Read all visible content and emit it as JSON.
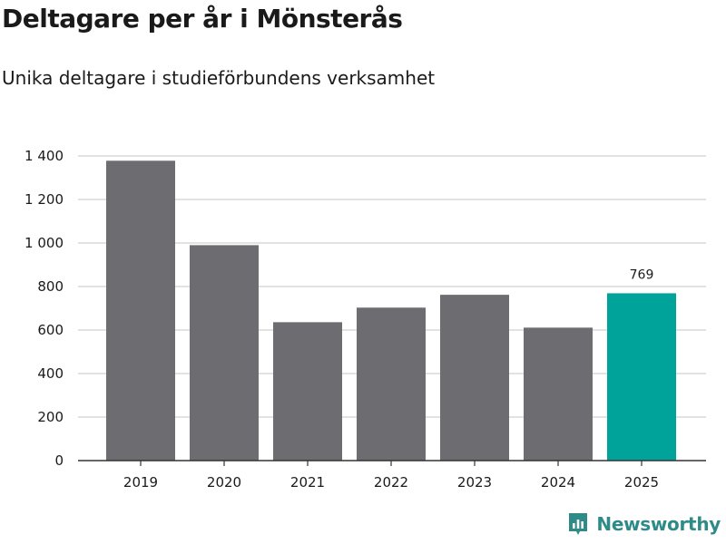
{
  "chart_data": {
    "type": "bar",
    "title": "Deltagare per år i Mönsterås",
    "subtitle": "Unika deltagare i studieförbundens verksamhet",
    "categories": [
      "2019",
      "2020",
      "2021",
      "2022",
      "2023",
      "2024",
      "2025"
    ],
    "values": [
      1378,
      990,
      636,
      703,
      762,
      611,
      769
    ],
    "highlight_index": 6,
    "data_labels": [
      {
        "index": 6,
        "text": "769"
      }
    ],
    "yticks": [
      {
        "value": 0,
        "label": "0"
      },
      {
        "value": 200,
        "label": "200"
      },
      {
        "value": 400,
        "label": "400"
      },
      {
        "value": 600,
        "label": "600"
      },
      {
        "value": 800,
        "label": "800"
      },
      {
        "value": 1000,
        "label": "1 000"
      },
      {
        "value": 1200,
        "label": "1 200"
      },
      {
        "value": 1400,
        "label": "1 400"
      }
    ],
    "ylim": [
      0,
      1400
    ],
    "xlabel": "",
    "ylabel": "",
    "grid": true,
    "colors": {
      "bar": "#6d6c71",
      "highlight": "#00a39a",
      "grid": "#d9d9d9",
      "axis": "#333333"
    }
  },
  "brand": {
    "name": "Newsworthy",
    "color": "#2e8b87",
    "icon": "newsworthy-logo-icon"
  }
}
